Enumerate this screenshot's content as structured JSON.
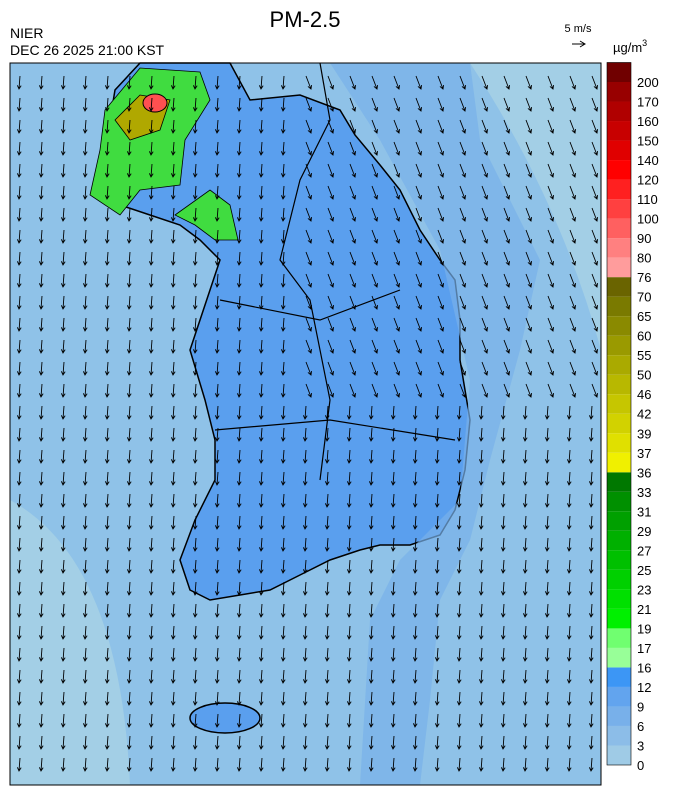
{
  "header": {
    "title": "PM-2.5",
    "agency": "NIER",
    "datetime": "DEC 26 2025 21:00 KST",
    "wind_scale": "5 m/s"
  },
  "colorbar": {
    "unit": {
      "base": "µg/m",
      "sup": "3"
    },
    "levels": [
      0,
      3,
      6,
      9,
      12,
      16,
      17,
      19,
      21,
      23,
      25,
      27,
      29,
      31,
      33,
      36,
      37,
      39,
      42,
      46,
      50,
      55,
      60,
      65,
      70,
      76,
      80,
      90,
      100,
      110,
      120,
      140,
      150,
      160,
      170,
      200
    ],
    "colors": [
      "#9fcbe6",
      "#8cbde8",
      "#78b0ea",
      "#62a4ee",
      "#3c96f5",
      "#98ff98",
      "#70ff70",
      "#00f000",
      "#00e000",
      "#00d000",
      "#00c000",
      "#00b000",
      "#00a000",
      "#009000",
      "#007800",
      "#f0f000",
      "#e0e000",
      "#d2d200",
      "#c6c600",
      "#b8b800",
      "#aaaa00",
      "#9a9a00",
      "#8a8a00",
      "#7a7a00",
      "#6a6400",
      "#ff9c9c",
      "#ff8080",
      "#ff6060",
      "#ff4040",
      "#ff2020",
      "#ff0000",
      "#e00000",
      "#c80000",
      "#b00000",
      "#980000",
      "#700000"
    ]
  }
}
